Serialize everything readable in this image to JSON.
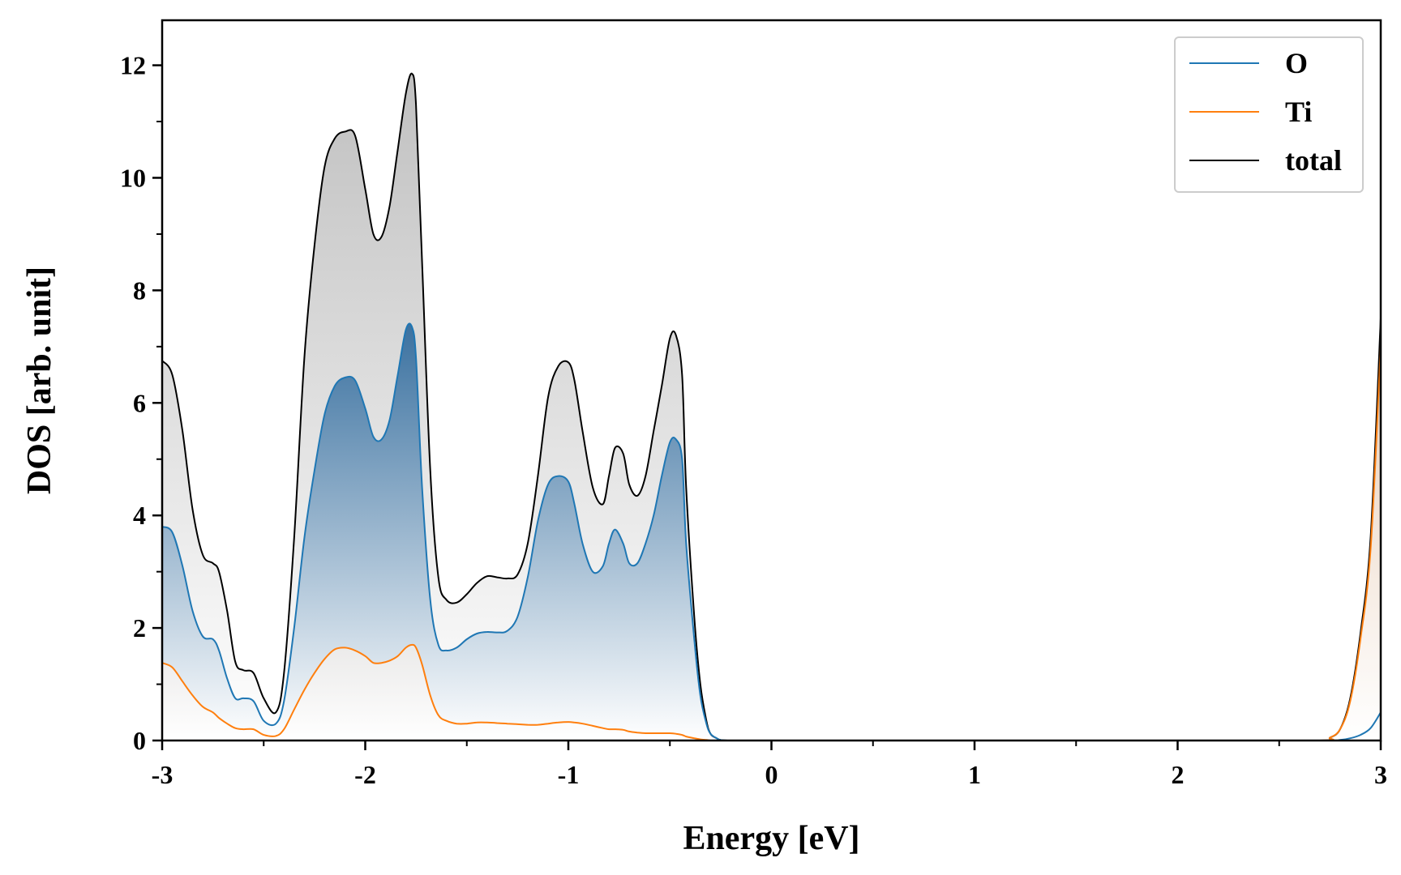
{
  "chart_data": {
    "type": "area",
    "title": "",
    "xlabel": "Energy [eV]",
    "ylabel": "DOS [arb. unit]",
    "xlim": [
      -3,
      3
    ],
    "ylim": [
      0,
      12.8
    ],
    "xticks": [
      -3,
      -2,
      -1,
      0,
      1,
      2,
      3
    ],
    "yticks": [
      0,
      2,
      4,
      6,
      8,
      10,
      12
    ],
    "grid": false,
    "legend": {
      "placement": "top-right",
      "entries": [
        "O",
        "Ti",
        "total"
      ]
    },
    "series": [
      {
        "name": "O",
        "color": "#1f77b4",
        "fill": "gradient",
        "x": [
          -3.0,
          -2.95,
          -2.9,
          -2.85,
          -2.8,
          -2.75,
          -2.72,
          -2.68,
          -2.64,
          -2.6,
          -2.55,
          -2.5,
          -2.44,
          -2.4,
          -2.35,
          -2.3,
          -2.25,
          -2.2,
          -2.15,
          -2.1,
          -2.05,
          -2.0,
          -1.96,
          -1.92,
          -1.88,
          -1.84,
          -1.8,
          -1.77,
          -1.75,
          -1.72,
          -1.68,
          -1.64,
          -1.6,
          -1.55,
          -1.5,
          -1.45,
          -1.4,
          -1.35,
          -1.3,
          -1.25,
          -1.2,
          -1.15,
          -1.1,
          -1.05,
          -1.0,
          -0.97,
          -0.93,
          -0.88,
          -0.83,
          -0.8,
          -0.77,
          -0.73,
          -0.7,
          -0.66,
          -0.62,
          -0.58,
          -0.54,
          -0.5,
          -0.47,
          -0.44,
          -0.42,
          -0.38,
          -0.35,
          -0.32,
          -0.3,
          -0.27,
          -0.25,
          -0.2,
          0.0,
          1.0,
          2.0,
          2.7,
          2.8,
          2.85,
          2.9,
          2.95,
          3.0
        ],
        "values": [
          3.8,
          3.7,
          3.1,
          2.3,
          1.85,
          1.8,
          1.6,
          1.1,
          0.75,
          0.75,
          0.7,
          0.35,
          0.3,
          0.7,
          2.0,
          3.6,
          4.8,
          5.8,
          6.3,
          6.45,
          6.4,
          5.9,
          5.4,
          5.35,
          5.7,
          6.5,
          7.3,
          7.35,
          6.8,
          4.5,
          2.5,
          1.7,
          1.6,
          1.65,
          1.8,
          1.9,
          1.93,
          1.92,
          1.95,
          2.2,
          2.9,
          3.9,
          4.55,
          4.7,
          4.6,
          4.2,
          3.5,
          3.0,
          3.1,
          3.5,
          3.75,
          3.5,
          3.15,
          3.15,
          3.5,
          4.0,
          4.7,
          5.3,
          5.35,
          5.0,
          3.5,
          1.8,
          0.8,
          0.3,
          0.12,
          0.04,
          0.01,
          0.0,
          0.0,
          0.0,
          0.0,
          0.0,
          0.01,
          0.04,
          0.1,
          0.22,
          0.5
        ]
      },
      {
        "name": "Ti",
        "color": "#ff7f0e",
        "fill": "none",
        "x": [
          -3.0,
          -2.95,
          -2.9,
          -2.85,
          -2.8,
          -2.75,
          -2.72,
          -2.68,
          -2.64,
          -2.6,
          -2.55,
          -2.5,
          -2.44,
          -2.4,
          -2.35,
          -2.3,
          -2.25,
          -2.2,
          -2.15,
          -2.1,
          -2.05,
          -2.0,
          -1.96,
          -1.92,
          -1.88,
          -1.84,
          -1.8,
          -1.77,
          -1.75,
          -1.72,
          -1.68,
          -1.64,
          -1.6,
          -1.55,
          -1.5,
          -1.45,
          -1.4,
          -1.35,
          -1.3,
          -1.25,
          -1.2,
          -1.15,
          -1.1,
          -1.05,
          -1.0,
          -0.97,
          -0.93,
          -0.88,
          -0.83,
          -0.8,
          -0.77,
          -0.73,
          -0.7,
          -0.66,
          -0.62,
          -0.58,
          -0.54,
          -0.5,
          -0.47,
          -0.44,
          -0.42,
          -0.38,
          -0.35,
          -0.32,
          -0.3,
          -0.27,
          -0.25,
          -0.2,
          0.0,
          1.0,
          2.0,
          2.7,
          2.75,
          2.8,
          2.85,
          2.9,
          2.95,
          3.0
        ],
        "values": [
          1.38,
          1.3,
          1.05,
          0.8,
          0.6,
          0.5,
          0.4,
          0.3,
          0.22,
          0.2,
          0.2,
          0.1,
          0.08,
          0.2,
          0.55,
          0.9,
          1.2,
          1.45,
          1.62,
          1.65,
          1.6,
          1.5,
          1.38,
          1.38,
          1.42,
          1.5,
          1.65,
          1.7,
          1.65,
          1.35,
          0.8,
          0.45,
          0.35,
          0.3,
          0.3,
          0.32,
          0.32,
          0.31,
          0.3,
          0.29,
          0.28,
          0.28,
          0.3,
          0.32,
          0.33,
          0.32,
          0.3,
          0.26,
          0.22,
          0.2,
          0.2,
          0.19,
          0.16,
          0.14,
          0.13,
          0.13,
          0.13,
          0.13,
          0.12,
          0.1,
          0.07,
          0.04,
          0.02,
          0.01,
          0.0,
          0.0,
          0.0,
          0.0,
          0.0,
          0.0,
          0.0,
          0.0,
          0.05,
          0.2,
          0.7,
          1.8,
          3.4,
          7.0
        ]
      },
      {
        "name": "total",
        "color": "#000000",
        "fill": "gradient",
        "x": [
          -3.0,
          -2.95,
          -2.9,
          -2.85,
          -2.8,
          -2.75,
          -2.72,
          -2.68,
          -2.64,
          -2.6,
          -2.55,
          -2.5,
          -2.44,
          -2.4,
          -2.35,
          -2.3,
          -2.25,
          -2.2,
          -2.15,
          -2.1,
          -2.05,
          -2.0,
          -1.96,
          -1.92,
          -1.88,
          -1.84,
          -1.8,
          -1.77,
          -1.75,
          -1.72,
          -1.68,
          -1.64,
          -1.6,
          -1.55,
          -1.5,
          -1.45,
          -1.4,
          -1.35,
          -1.3,
          -1.25,
          -1.2,
          -1.15,
          -1.1,
          -1.05,
          -1.0,
          -0.97,
          -0.93,
          -0.88,
          -0.83,
          -0.8,
          -0.77,
          -0.73,
          -0.7,
          -0.66,
          -0.62,
          -0.58,
          -0.54,
          -0.5,
          -0.47,
          -0.44,
          -0.42,
          -0.38,
          -0.35,
          -0.32,
          -0.3,
          -0.27,
          -0.25,
          -0.2,
          0.0,
          1.0,
          2.0,
          2.7,
          2.75,
          2.8,
          2.85,
          2.9,
          2.95,
          3.0
        ],
        "values": [
          6.75,
          6.5,
          5.5,
          4.1,
          3.3,
          3.15,
          3.0,
          2.3,
          1.4,
          1.25,
          1.2,
          0.75,
          0.5,
          1.2,
          3.6,
          6.8,
          8.8,
          10.2,
          10.7,
          10.82,
          10.75,
          9.8,
          9.0,
          8.95,
          9.5,
          10.5,
          11.5,
          11.85,
          11.3,
          8.5,
          4.8,
          2.9,
          2.5,
          2.45,
          2.6,
          2.8,
          2.92,
          2.9,
          2.88,
          2.95,
          3.5,
          4.7,
          6.1,
          6.65,
          6.72,
          6.4,
          5.5,
          4.5,
          4.2,
          4.7,
          5.2,
          5.1,
          4.55,
          4.35,
          4.7,
          5.5,
          6.3,
          7.15,
          7.2,
          6.5,
          4.5,
          2.2,
          1.0,
          0.35,
          0.12,
          0.04,
          0.01,
          0.0,
          0.0,
          0.0,
          0.0,
          0.0,
          0.05,
          0.2,
          0.75,
          1.9,
          3.6,
          7.5
        ]
      }
    ]
  }
}
